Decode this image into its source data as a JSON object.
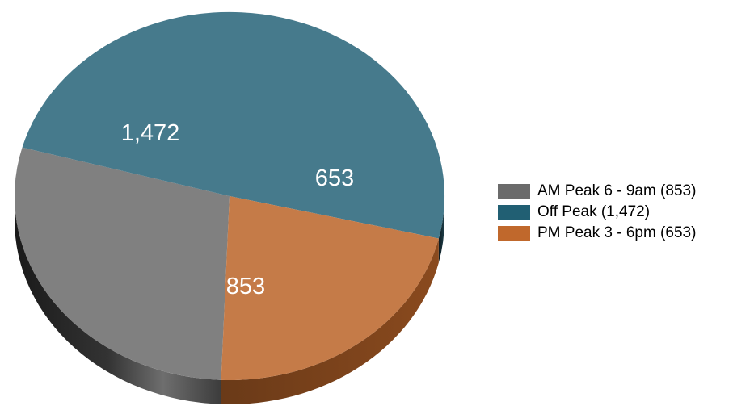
{
  "chart_data": {
    "type": "pie",
    "title": "",
    "legend_position": "right",
    "categories": [
      "AM Peak 6 - 9am",
      "Off Peak",
      "PM Peak 3 - 6pm"
    ],
    "values": [
      853,
      1472,
      653
    ],
    "value_labels": [
      "853",
      "1,472",
      "653"
    ],
    "colors": [
      "#808080",
      "#467A8C",
      "#C57B48"
    ],
    "legend_entries": [
      "AM Peak 6 - 9am (853)",
      "Off Peak (1,472)",
      "PM Peak 3 - 6pm (653)"
    ]
  }
}
